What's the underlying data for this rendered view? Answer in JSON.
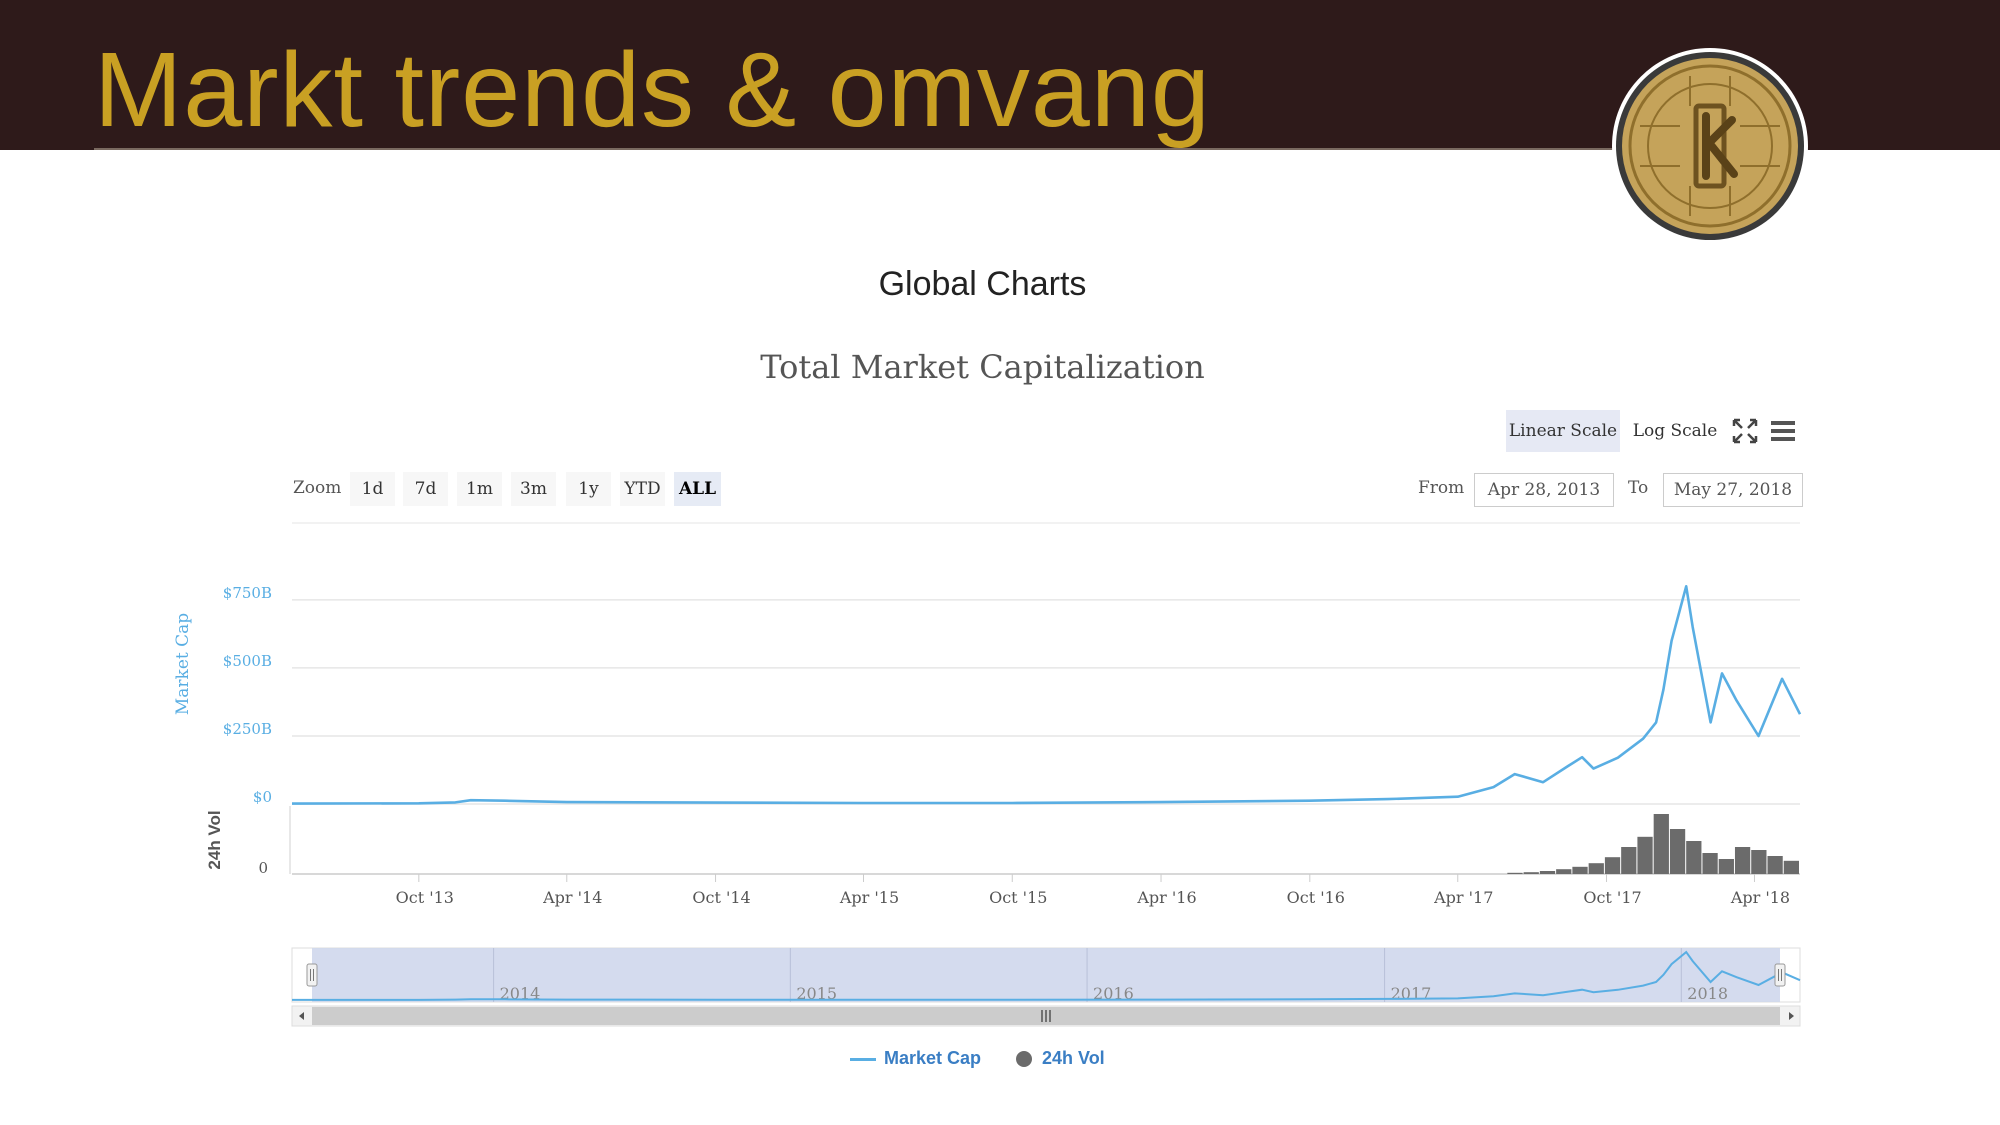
{
  "slide": {
    "title": "Markt trends & omvang"
  },
  "page": {
    "heading": "Global Charts"
  },
  "chart_controls": {
    "scale_linear": "Linear Scale",
    "scale_log": "Log Scale",
    "active_scale": "Linear Scale",
    "zoom_label": "Zoom",
    "zoom_options": [
      "1d",
      "7d",
      "1m",
      "3m",
      "1y",
      "YTD",
      "ALL"
    ],
    "zoom_selected": "ALL",
    "from_label": "From",
    "from_value": "Apr 28, 2013",
    "to_label": "To",
    "to_value": "May 27, 2018",
    "icons": [
      "fullscreen-icon",
      "menu-icon"
    ]
  },
  "colors": {
    "banner": "#2e1a1a",
    "title_gold": "#c9a023",
    "market_cap_line": "#59aee3",
    "volume_bars": "#6b6b6b",
    "axis_text": "#59aee3"
  },
  "chart_data": {
    "type": "line",
    "title": "Total Market Capitalization",
    "x_type": "datetime",
    "x_range": [
      "2013-04-28",
      "2018-05-27"
    ],
    "x_ticks": [
      "Oct '13",
      "Apr '14",
      "Oct '14",
      "Apr '15",
      "Oct '15",
      "Apr '16",
      "Oct '16",
      "Apr '17",
      "Oct '17",
      "Apr '18"
    ],
    "x_tick_dates": [
      "2013-10-01",
      "2014-04-01",
      "2014-10-01",
      "2015-04-01",
      "2015-10-01",
      "2016-04-01",
      "2016-10-01",
      "2017-04-01",
      "2017-10-01",
      "2018-04-01"
    ],
    "y_axes": [
      {
        "label": "Market Cap",
        "ticks": [
          "$0",
          "$250B",
          "$500B",
          "$750B"
        ],
        "tick_values": [
          0,
          250,
          500,
          750
        ],
        "unit": "USD billions"
      },
      {
        "label": "24h Vol",
        "ticks": [
          "0"
        ],
        "tick_values": [
          0
        ]
      }
    ],
    "series": [
      {
        "name": "Market Cap",
        "x": [
          "2013-04-28",
          "2013-10-01",
          "2013-11-15",
          "2013-12-04",
          "2014-01-15",
          "2014-04-01",
          "2014-10-01",
          "2015-04-01",
          "2015-10-01",
          "2016-04-01",
          "2016-10-01",
          "2017-01-05",
          "2017-04-01",
          "2017-05-15",
          "2017-06-10",
          "2017-07-15",
          "2017-08-15",
          "2017-09-01",
          "2017-09-15",
          "2017-10-15",
          "2017-11-15",
          "2017-12-01",
          "2017-12-10",
          "2017-12-20",
          "2018-01-07",
          "2018-01-15",
          "2018-02-06",
          "2018-02-20",
          "2018-03-10",
          "2018-04-06",
          "2018-05-05",
          "2018-05-27"
        ],
        "values": [
          1.5,
          2.5,
          6,
          14,
          12,
          7,
          5,
          3.6,
          3.6,
          7,
          12,
          18,
          27,
          62,
          110,
          80,
          140,
          172,
          130,
          170,
          240,
          300,
          420,
          600,
          800,
          650,
          300,
          480,
          380,
          250,
          460,
          330
        ]
      },
      {
        "name": "24h Vol",
        "type": "column",
        "values_relative": [
          0.02,
          0.03,
          0.05,
          0.08,
          0.12,
          0.18,
          0.28,
          0.45,
          0.62,
          1.0,
          0.75,
          0.55,
          0.35,
          0.25,
          0.45,
          0.4,
          0.3,
          0.22
        ]
      }
    ],
    "navigator": {
      "years": [
        "2014",
        "2015",
        "2016",
        "2017",
        "2018"
      ]
    },
    "legend": [
      "Market Cap",
      "24h Vol"
    ],
    "legend_position": "bottom-center",
    "grid": true
  }
}
